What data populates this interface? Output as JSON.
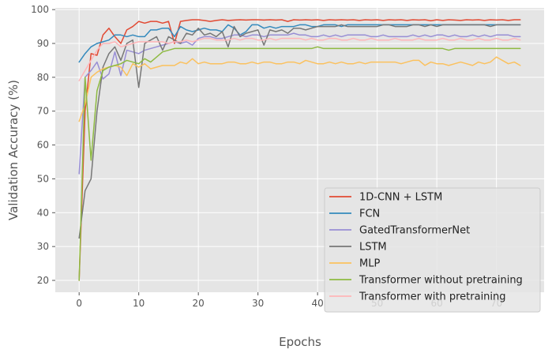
{
  "chart_data": {
    "type": "line",
    "title": "",
    "xlabel": "Epochs",
    "ylabel": "Validation Accuracy (%)",
    "xlim": [
      -4,
      78
    ],
    "ylim": [
      16.5,
      100.5
    ],
    "xticks": [
      0,
      10,
      20,
      30,
      40,
      50,
      60,
      70
    ],
    "yticks": [
      20,
      30,
      40,
      50,
      60,
      70,
      80,
      90,
      100
    ],
    "grid": true,
    "legend_position": "lower right",
    "x": [
      0,
      1,
      2,
      3,
      4,
      5,
      6,
      7,
      8,
      9,
      10,
      11,
      12,
      13,
      14,
      15,
      16,
      17,
      18,
      19,
      20,
      21,
      22,
      23,
      24,
      25,
      26,
      27,
      28,
      29,
      30,
      31,
      32,
      33,
      34,
      35,
      36,
      37,
      38,
      39,
      40,
      41,
      42,
      43,
      44,
      45,
      46,
      47,
      48,
      49,
      50,
      51,
      52,
      53,
      54,
      55,
      56,
      57,
      58,
      59,
      60,
      61,
      62,
      63,
      64,
      65,
      66,
      67,
      68,
      69,
      70,
      71,
      72,
      73,
      74
    ],
    "series": [
      {
        "name": "1D-CNN + LSTM",
        "color": "#E24A33",
        "values": [
          20,
          70,
          87,
          86.5,
          92.5,
          94.5,
          92,
          90,
          94,
          95,
          96.5,
          96,
          96.5,
          96.5,
          96,
          96.5,
          90,
          96.5,
          96.8,
          97,
          97,
          96.8,
          96.5,
          96.8,
          97,
          96.8,
          96.9,
          97,
          96.9,
          97,
          97,
          96.9,
          97,
          96.9,
          97,
          96.5,
          97,
          96.9,
          97,
          96.9,
          97,
          96.8,
          97,
          96.9,
          97,
          96.9,
          97,
          96.8,
          97,
          96.9,
          97,
          96.8,
          97,
          96.9,
          97,
          96.8,
          97,
          96.9,
          97,
          96.7,
          97,
          96.8,
          97,
          96.9,
          96.8,
          97,
          96.9,
          97,
          96.8,
          97,
          96.9,
          97,
          96.8,
          97,
          97
        ]
      },
      {
        "name": "FCN",
        "color": "#348ABD",
        "values": [
          84.5,
          87,
          89,
          90,
          90.5,
          91,
          92.5,
          92.5,
          92,
          92.5,
          92,
          92,
          94,
          94,
          94.5,
          94.5,
          92,
          95,
          94,
          93.5,
          94,
          94.5,
          94,
          94,
          93.5,
          95.5,
          94.5,
          92.5,
          93.5,
          95.5,
          95.5,
          94.5,
          95,
          94.5,
          95,
          95,
          95,
          95.5,
          95.5,
          95,
          95,
          95.5,
          95.5,
          95.5,
          95,
          95.5,
          95.5,
          95.5,
          95.5,
          95.5,
          95.5,
          95.5,
          95.5,
          95.5,
          95.5,
          95.5,
          95.5,
          95.5,
          95.5,
          95.5,
          95.5,
          95.5,
          95.5,
          95.5,
          95.5,
          95.5,
          95.5,
          95.5,
          95.5,
          95.5,
          95.5,
          95.5,
          95.5,
          95.5,
          95.5
        ]
      },
      {
        "name": "GatedTransformerNet",
        "color": "#988ED5",
        "values": [
          51.5,
          80,
          82,
          84.5,
          79.5,
          81,
          87.5,
          80.5,
          88,
          87.5,
          87,
          88,
          88.5,
          89,
          89.5,
          90,
          90.5,
          90,
          90.5,
          89.5,
          91.5,
          92,
          92,
          91.5,
          91.5,
          92,
          92.5,
          92.5,
          92,
          92.5,
          92.5,
          92,
          92.5,
          92.5,
          92.5,
          92.5,
          93,
          92.5,
          92.5,
          92,
          92,
          92.5,
          92,
          92.5,
          92,
          92.5,
          92.5,
          92.5,
          92.5,
          92,
          92,
          92.5,
          92,
          92,
          92,
          92,
          92.5,
          92,
          92.5,
          92,
          92.5,
          92.5,
          92,
          92.5,
          92,
          92,
          92.5,
          92,
          92.5,
          92,
          92.5,
          92.5,
          92.5,
          92,
          92
        ]
      },
      {
        "name": "LSTM",
        "color": "#777777",
        "values": [
          32.5,
          46.5,
          50,
          70,
          83,
          87,
          89,
          85,
          90,
          91,
          77,
          90,
          91,
          92,
          88,
          92,
          91,
          90,
          93,
          92.5,
          94.5,
          92.5,
          93,
          92,
          93.5,
          89,
          95,
          92,
          93,
          93.5,
          94,
          89.5,
          94,
          93.5,
          94,
          93,
          94.5,
          94.5,
          94,
          94.5,
          95,
          95,
          95,
          95,
          95.5,
          95,
          95,
          95,
          95,
          95,
          95,
          95.5,
          95.5,
          95,
          95,
          95,
          95.5,
          95.5,
          95,
          95.5,
          95,
          95.5,
          95.5,
          95.5,
          95.5,
          95.5,
          95.5,
          95.5,
          95.5,
          95,
          95.5,
          95.5,
          95.5,
          95.5,
          95.5
        ]
      },
      {
        "name": "MLP",
        "color": "#FBC15E",
        "values": [
          67,
          72,
          80,
          81.5,
          82.5,
          83,
          83.5,
          83,
          80.5,
          84,
          83,
          84,
          82.5,
          83,
          83.5,
          83.5,
          83.5,
          84.5,
          84,
          85.5,
          84,
          84.5,
          84,
          84,
          84,
          84.5,
          84.5,
          84,
          84,
          84.5,
          84,
          84.5,
          84.5,
          84,
          84,
          84.5,
          84.5,
          84,
          85,
          84.5,
          84,
          84,
          84.5,
          84,
          84.5,
          84,
          84,
          84.5,
          84,
          84.5,
          84.5,
          84.5,
          84.5,
          84.5,
          84,
          84.5,
          85,
          85,
          83.5,
          84.5,
          84,
          84,
          83.5,
          84,
          84.5,
          84,
          83.5,
          84.5,
          84,
          84.5,
          86,
          85,
          84,
          84.5,
          83.5
        ]
      },
      {
        "name": "Transformer without pretraining",
        "color": "#8EBA42",
        "values": [
          20,
          80,
          55.5,
          76,
          82,
          83,
          83.5,
          84,
          85,
          84.5,
          84,
          85.5,
          84.5,
          86,
          87.5,
          88,
          88.5,
          88.5,
          88.5,
          88.5,
          88.5,
          88.5,
          88.5,
          88.5,
          88.5,
          88.5,
          88.5,
          88.5,
          88.5,
          88.5,
          88.5,
          88.5,
          88.5,
          88.5,
          88.5,
          88.5,
          88.5,
          88.5,
          88.5,
          88.5,
          89,
          88.5,
          88.5,
          88.5,
          88.5,
          88.5,
          88.5,
          88.5,
          88.5,
          88.5,
          88.5,
          88.5,
          88.5,
          88.5,
          88.5,
          88.5,
          88.5,
          88.5,
          88.5,
          88.5,
          88.5,
          88.5,
          88,
          88.5,
          88.5,
          88.5,
          88.5,
          88.5,
          88.5,
          88.5,
          88.5,
          88.5,
          88.5,
          88.5,
          88.5
        ]
      },
      {
        "name": "Transformer with pretraining",
        "color": "#FFB5B8",
        "values": [
          79,
          82,
          85,
          88,
          90,
          90,
          90.5,
          89,
          89.5,
          90,
          90.5,
          90.5,
          90.5,
          90.5,
          90.5,
          90,
          90.5,
          90.5,
          91,
          90.5,
          91,
          91.5,
          91.5,
          91,
          91,
          91,
          91.5,
          91,
          91.5,
          91.5,
          91,
          91,
          91.5,
          91,
          91.5,
          91.5,
          91.5,
          91.5,
          91,
          91.5,
          91,
          91,
          91.5,
          91.5,
          91,
          91,
          91.5,
          91,
          91,
          91.5,
          91,
          91,
          91,
          91.5,
          91,
          91,
          91,
          91.5,
          91,
          91,
          91,
          91.5,
          91,
          91,
          91.5,
          91,
          91,
          91.5,
          91,
          91,
          91.5,
          91,
          91,
          91.5,
          91
        ]
      }
    ]
  }
}
